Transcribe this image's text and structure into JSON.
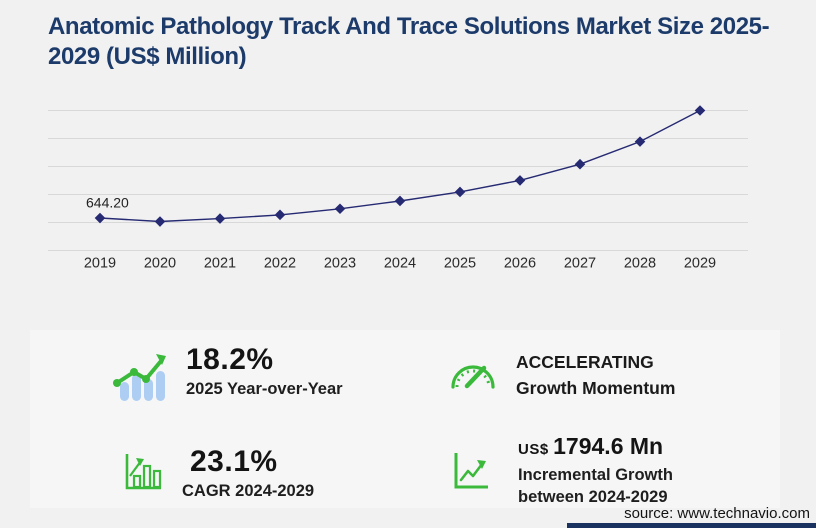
{
  "title": "Anatomic Pathology Track And Trace Solutions Market Size 2025-2029 (US$ Million)",
  "chart_data": {
    "type": "line",
    "title": "Anatomic Pathology Track And Trace Solutions Market Size 2025-2029 (US$ Million)",
    "categories": [
      "2019",
      "2020",
      "2021",
      "2022",
      "2023",
      "2024",
      "2025",
      "2026",
      "2027",
      "2028",
      "2029"
    ],
    "series": [
      {
        "name": "Market size (US$ Million)",
        "values": [
          644.2,
          575.0,
          633.0,
          707.0,
          828.0,
          982.6,
          1161.5,
          1390.0,
          1712.0,
          2160.0,
          2777.2
        ]
      }
    ],
    "point_labels": [
      {
        "index": 0,
        "text": "644.20"
      }
    ],
    "xlabel": "",
    "ylabel": "",
    "ylim": [
      0,
      2850
    ],
    "grid": true,
    "gridline_count": 6,
    "legend": "none",
    "line_color": "#262a72",
    "marker": "diamond"
  },
  "stats": {
    "yoy": {
      "value": "18.2%",
      "label": "2025 Year-over-Year"
    },
    "cagr": {
      "value": "23.1%",
      "label": "CAGR 2024-2029"
    },
    "momentum": {
      "value": "ACCELERATING",
      "label": "Growth Momentum"
    },
    "incremental": {
      "currency": "US$",
      "value": "1794.6 Mn",
      "label_line1": "Incremental Growth",
      "label_line2": "between 2024-2029"
    }
  },
  "footer": {
    "source": "source: www.technavio.com"
  },
  "colors": {
    "accent_navy": "#1c3b6a",
    "line_navy": "#262a72",
    "grid_gray": "#d8d8d9",
    "green": "#3bb93b",
    "bar_blue": "#aecdf3",
    "footer_bar": "#1a3260"
  }
}
